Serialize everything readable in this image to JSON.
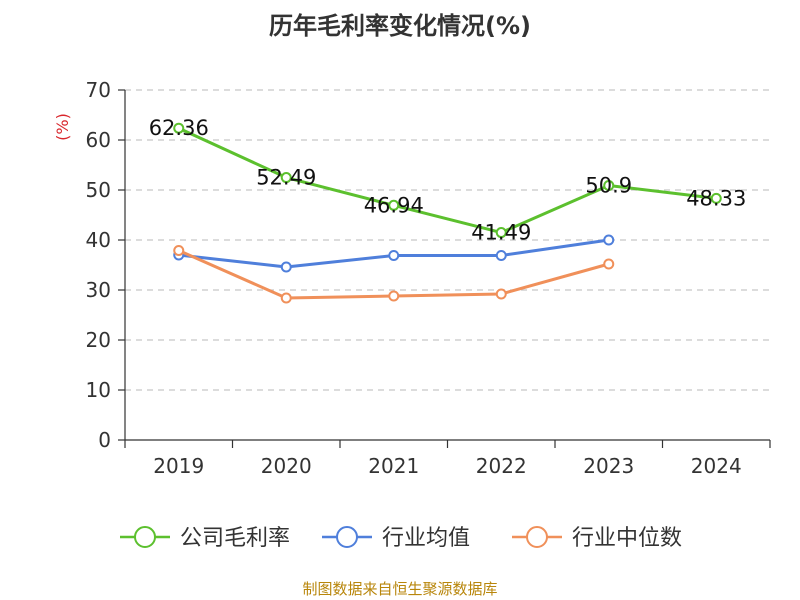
{
  "chart_data": {
    "type": "line",
    "title": "历年毛利率变化情况(%)",
    "ylabel": "(%)",
    "xlabel": "",
    "categories": [
      "2019",
      "2020",
      "2021",
      "2022",
      "2023",
      "2024"
    ],
    "ylim": [
      0,
      70
    ],
    "yticks": [
      "0",
      "10",
      "20",
      "30",
      "40",
      "50",
      "60",
      "70"
    ],
    "grid": true,
    "legend_position": "bottom",
    "series": [
      {
        "name": "公司毛利率",
        "color": "#5cc02e",
        "values": [
          62.36,
          52.49,
          46.94,
          41.49,
          50.9,
          48.33
        ],
        "labels": [
          "62.36",
          "52.49",
          "46.94",
          "41.49",
          "50.9",
          "48.33"
        ]
      },
      {
        "name": "行业均值",
        "color": "#4f7fdb",
        "values": [
          37.0,
          34.6,
          36.9,
          36.9,
          40.0,
          null
        ]
      },
      {
        "name": "行业中位数",
        "color": "#f0905a",
        "values": [
          37.9,
          28.4,
          28.8,
          29.2,
          35.2,
          null
        ]
      }
    ],
    "source": "制图数据来自恒生聚源数据库"
  }
}
